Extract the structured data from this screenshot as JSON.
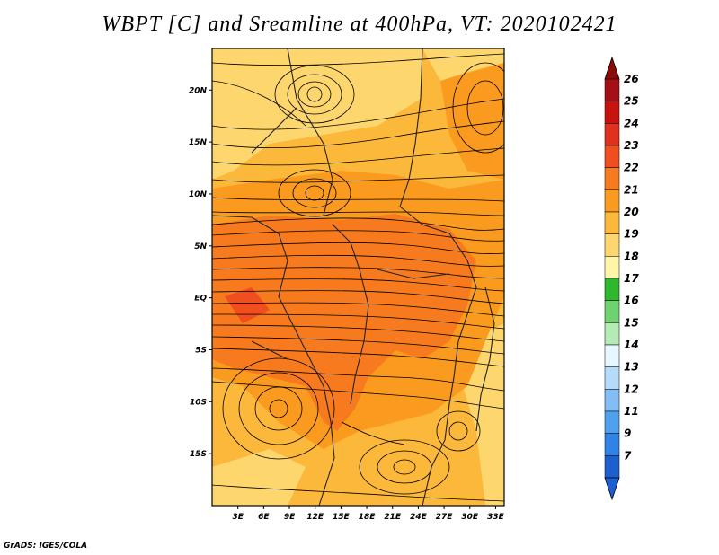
{
  "title": "WBPT [C] and Sreamline at 400hPa, VT: 2020102421",
  "footer": "GrADS: IGES/COLA",
  "map": {
    "lon_range": [
      0,
      34
    ],
    "lat_range": [
      -20,
      24
    ],
    "lat_ticks": [
      {
        "value": 20,
        "label": "20N"
      },
      {
        "value": 15,
        "label": "15N"
      },
      {
        "value": 10,
        "label": "10N"
      },
      {
        "value": 5,
        "label": "5N"
      },
      {
        "value": 0,
        "label": "EQ"
      },
      {
        "value": -5,
        "label": "5S"
      },
      {
        "value": -10,
        "label": "10S"
      },
      {
        "value": -15,
        "label": "15S"
      }
    ],
    "lon_ticks": [
      {
        "value": 3,
        "label": "3E"
      },
      {
        "value": 6,
        "label": "6E"
      },
      {
        "value": 9,
        "label": "9E"
      },
      {
        "value": 12,
        "label": "12E"
      },
      {
        "value": 15,
        "label": "15E"
      },
      {
        "value": 18,
        "label": "18E"
      },
      {
        "value": 21,
        "label": "21E"
      },
      {
        "value": 24,
        "label": "24E"
      },
      {
        "value": 27,
        "label": "27E"
      },
      {
        "value": 30,
        "label": "30E"
      },
      {
        "value": 33,
        "label": "33E"
      }
    ]
  },
  "colorbar": {
    "levels": [
      {
        "label": "26",
        "color": "#a50f15"
      },
      {
        "label": "25",
        "color": "#c8140f"
      },
      {
        "label": "24",
        "color": "#e0301e"
      },
      {
        "label": "23",
        "color": "#f04e1e"
      },
      {
        "label": "22",
        "color": "#f77a1e"
      },
      {
        "label": "21",
        "color": "#fa9a1e"
      },
      {
        "label": "20",
        "color": "#fcb83a"
      },
      {
        "label": "19",
        "color": "#fdd66e"
      },
      {
        "label": "18",
        "color": "#fff5a8"
      },
      {
        "label": "17",
        "color": "#2eb82e"
      },
      {
        "label": "16",
        "color": "#6fd26f"
      },
      {
        "label": "15",
        "color": "#b4eab4"
      },
      {
        "label": "14",
        "color": "#e6f7ff"
      },
      {
        "label": "13",
        "color": "#b4dcfa"
      },
      {
        "label": "12",
        "color": "#82bef5"
      },
      {
        "label": "11",
        "color": "#50a0f0"
      },
      {
        "label": "9",
        "color": "#2f82e6"
      },
      {
        "label": "7",
        "color": "#1e5fd0"
      }
    ],
    "top_color": "#8b0a0a",
    "bottom_color": "#1e5fd0"
  }
}
